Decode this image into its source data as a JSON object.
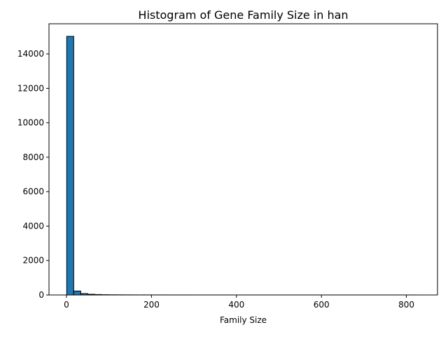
{
  "chart_data": {
    "type": "bar",
    "title": "Histogram of Gene Family Size in han",
    "xlabel": "Family Size",
    "ylabel": "",
    "xlim": [
      -41.2,
      873.2
    ],
    "ylim": [
      0,
      15750
    ],
    "xticks": [
      0,
      200,
      400,
      600,
      800
    ],
    "yticks": [
      0,
      2000,
      4000,
      6000,
      8000,
      10000,
      12000,
      14000
    ],
    "xtick_labels": [
      "0",
      "200",
      "400",
      "600",
      "800"
    ],
    "ytick_labels": [
      "0",
      "2000",
      "4000",
      "6000",
      "8000",
      "10000",
      "12000",
      "14000"
    ],
    "bin_start": 0.5,
    "bin_width": 16.5,
    "counts": [
      15020,
      230,
      80,
      40,
      25,
      15,
      10,
      8,
      6,
      5,
      4,
      4,
      3,
      3,
      2,
      2,
      2,
      2,
      1,
      1,
      1,
      1,
      1,
      1,
      1,
      1,
      1,
      1,
      1,
      1,
      1,
      1,
      1,
      1,
      1,
      1,
      1,
      1,
      1,
      1,
      1,
      1,
      1,
      1,
      1,
      1,
      1,
      1,
      1,
      1
    ],
    "bar_color": "#1f77b4",
    "edge_color": "#000000",
    "grid": false
  }
}
